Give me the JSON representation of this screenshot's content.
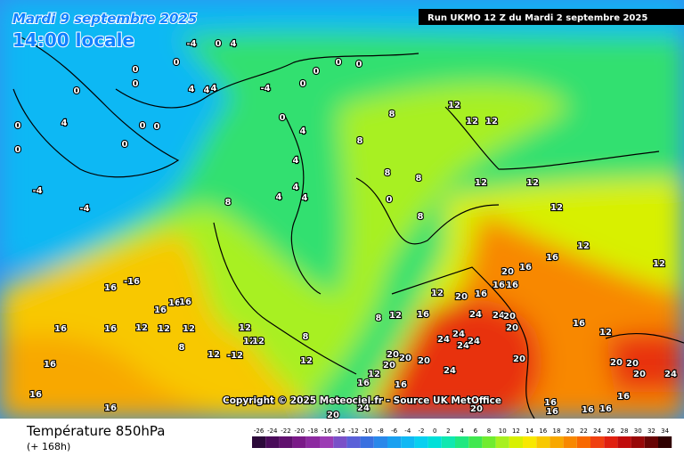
{
  "header": {
    "date": "Mardi 9 septembre 2025",
    "time": "14:00 locale",
    "run": "Run UKMO 12 Z du Mardi 2 septembre 2025"
  },
  "copyright": "Copyright © 2025 Meteociel.fr - Source UK MetOffice",
  "footer": {
    "title": "Température 850hPa",
    "subtitle": "(+ 168h)"
  },
  "map_labels": [
    -4,
    0,
    4,
    0,
    0,
    0,
    0,
    4,
    4,
    4,
    -4,
    0,
    0,
    0,
    0,
    0,
    4,
    0,
    0,
    0,
    0,
    -4,
    -4,
    0,
    4,
    8,
    8,
    12,
    12,
    12,
    4,
    4,
    4,
    4,
    8,
    8,
    8,
    0,
    8,
    12,
    12,
    12,
    12,
    12,
    16,
    20,
    20,
    16,
    12,
    16,
    16,
    16,
    16,
    12,
    24,
    24,
    20,
    24,
    24,
    24,
    24,
    20,
    20,
    24,
    20,
    20,
    20,
    20,
    16,
    12,
    8,
    20,
    20,
    20,
    24,
    16,
    16,
    16,
    16,
    16,
    16,
    -16,
    16,
    16,
    16,
    16,
    16,
    12,
    12,
    12,
    12,
    12,
    12,
    8,
    12,
    -12,
    12,
    8,
    16,
    16,
    16,
    12,
    16,
    16,
    24,
    20,
    20
  ],
  "colorbar": {
    "ticks": [
      -26,
      -24,
      -22,
      -20,
      -18,
      -16,
      -14,
      -12,
      -10,
      -8,
      -6,
      -4,
      -2,
      0,
      2,
      4,
      6,
      8,
      10,
      12,
      14,
      16,
      18,
      20,
      22,
      24,
      26,
      28,
      30,
      32,
      34
    ],
    "colors": [
      "#2c0a3a",
      "#4a0c5a",
      "#60106e",
      "#7a1a88",
      "#8c2aa0",
      "#9c3cb4",
      "#7a50c8",
      "#5a60d8",
      "#3a70e0",
      "#2a88ea",
      "#1aa0f0",
      "#10b8f4",
      "#08d0f0",
      "#00e0d8",
      "#10e8b0",
      "#20e880",
      "#40e850",
      "#70ec30",
      "#a8f020",
      "#d8f000",
      "#f8e800",
      "#f8c800",
      "#f8a800",
      "#f88800",
      "#f86800",
      "#f04010",
      "#e02010",
      "#c00c0c",
      "#980808",
      "#680404",
      "#300000"
    ]
  }
}
